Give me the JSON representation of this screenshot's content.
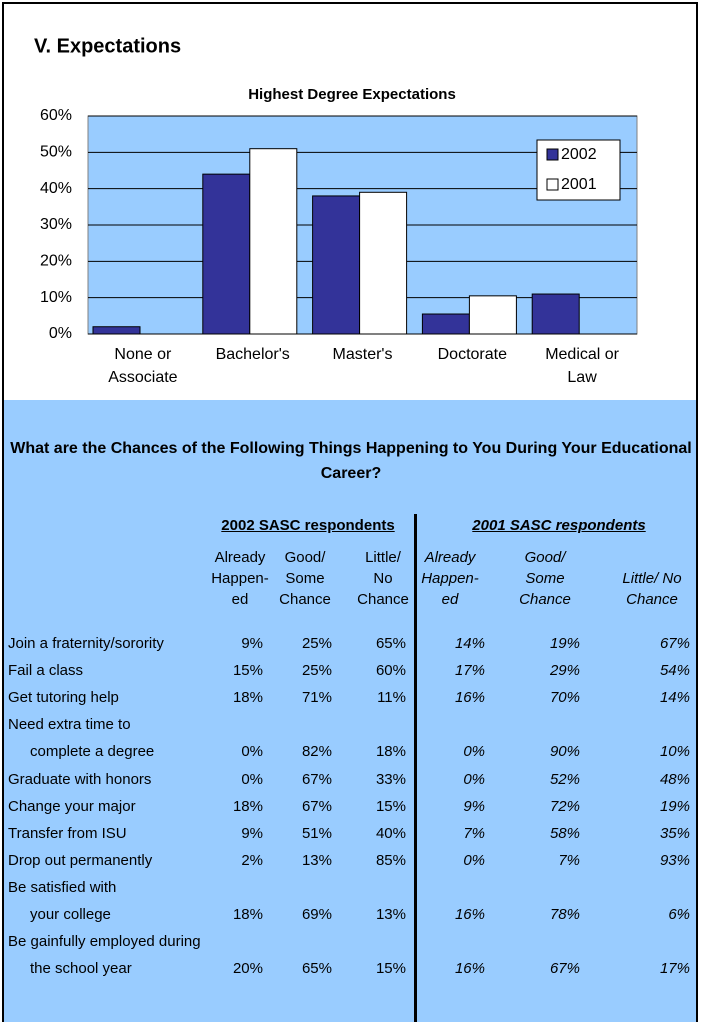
{
  "section_title": "V. Expectations",
  "chart_data": {
    "type": "bar",
    "title": "Highest Degree Expectations",
    "categories": [
      "None or\nAssociate",
      "Bachelor's",
      "Master's",
      "Doctorate",
      "Medical or\nLaw"
    ],
    "series": [
      {
        "name": "2002",
        "color": "#333399",
        "values": [
          2,
          44,
          38,
          5.5,
          11
        ]
      },
      {
        "name": "2001",
        "color": "#ffffff",
        "values": [
          null,
          51,
          39,
          10.5,
          null
        ]
      }
    ],
    "ylim": [
      0,
      60
    ],
    "yticks": [
      {
        "value": 0,
        "label": "0%"
      },
      {
        "value": 10,
        "label": "10%"
      },
      {
        "value": 20,
        "label": "20%"
      },
      {
        "value": 30,
        "label": "30%"
      },
      {
        "value": 40,
        "label": "40%"
      },
      {
        "value": 50,
        "label": "50%"
      },
      {
        "value": 60,
        "label": "60%"
      }
    ],
    "grid": true,
    "plot_background": "#99ccff",
    "legend": "upper right"
  },
  "table": {
    "title": "What are the Chances of the Following Things Happening to You During Your Educational Career?",
    "groups": [
      "2002 SASC respondents",
      "2001 SASC respondents"
    ],
    "columns": [
      "Already\nHappen-\ned",
      "Good/\nSome\nChance",
      "Little/\nNo\nChance",
      "Already\nHappen-\ned",
      "Good/\nSome\nChance",
      "Little/ No\nChance"
    ],
    "rows": [
      {
        "lines": [
          "Join a fraternity/sorority"
        ],
        "values": [
          "9%",
          "25%",
          "65%",
          "14%",
          "19%",
          "67%"
        ]
      },
      {
        "lines": [
          "Fail a class"
        ],
        "values": [
          "15%",
          "25%",
          "60%",
          "17%",
          "29%",
          "54%"
        ]
      },
      {
        "lines": [
          "Get tutoring help"
        ],
        "values": [
          "18%",
          "71%",
          "11%",
          "16%",
          "70%",
          "14%"
        ]
      },
      {
        "lines": [
          "Need extra time to",
          "complete a degree"
        ],
        "values": [
          "0%",
          "82%",
          "18%",
          "0%",
          "90%",
          "10%"
        ]
      },
      {
        "lines": [
          "Graduate with honors"
        ],
        "values": [
          "0%",
          "67%",
          "33%",
          "0%",
          "52%",
          "48%"
        ]
      },
      {
        "lines": [
          "Change your major"
        ],
        "values": [
          "18%",
          "67%",
          "15%",
          "9%",
          "72%",
          "19%"
        ]
      },
      {
        "lines": [
          "Transfer from ISU"
        ],
        "values": [
          "9%",
          "51%",
          "40%",
          "7%",
          "58%",
          "35%"
        ]
      },
      {
        "lines": [
          "Drop out permanently"
        ],
        "values": [
          "2%",
          "13%",
          "85%",
          "0%",
          "7%",
          "93%"
        ]
      },
      {
        "lines": [
          "Be satisfied with",
          "your college"
        ],
        "values": [
          "18%",
          "69%",
          "13%",
          "16%",
          "78%",
          "6%"
        ]
      },
      {
        "lines": [
          "Be gainfully employed during",
          "the school year"
        ],
        "values": [
          "20%",
          "65%",
          "15%",
          "16%",
          "67%",
          "17%"
        ]
      }
    ]
  }
}
